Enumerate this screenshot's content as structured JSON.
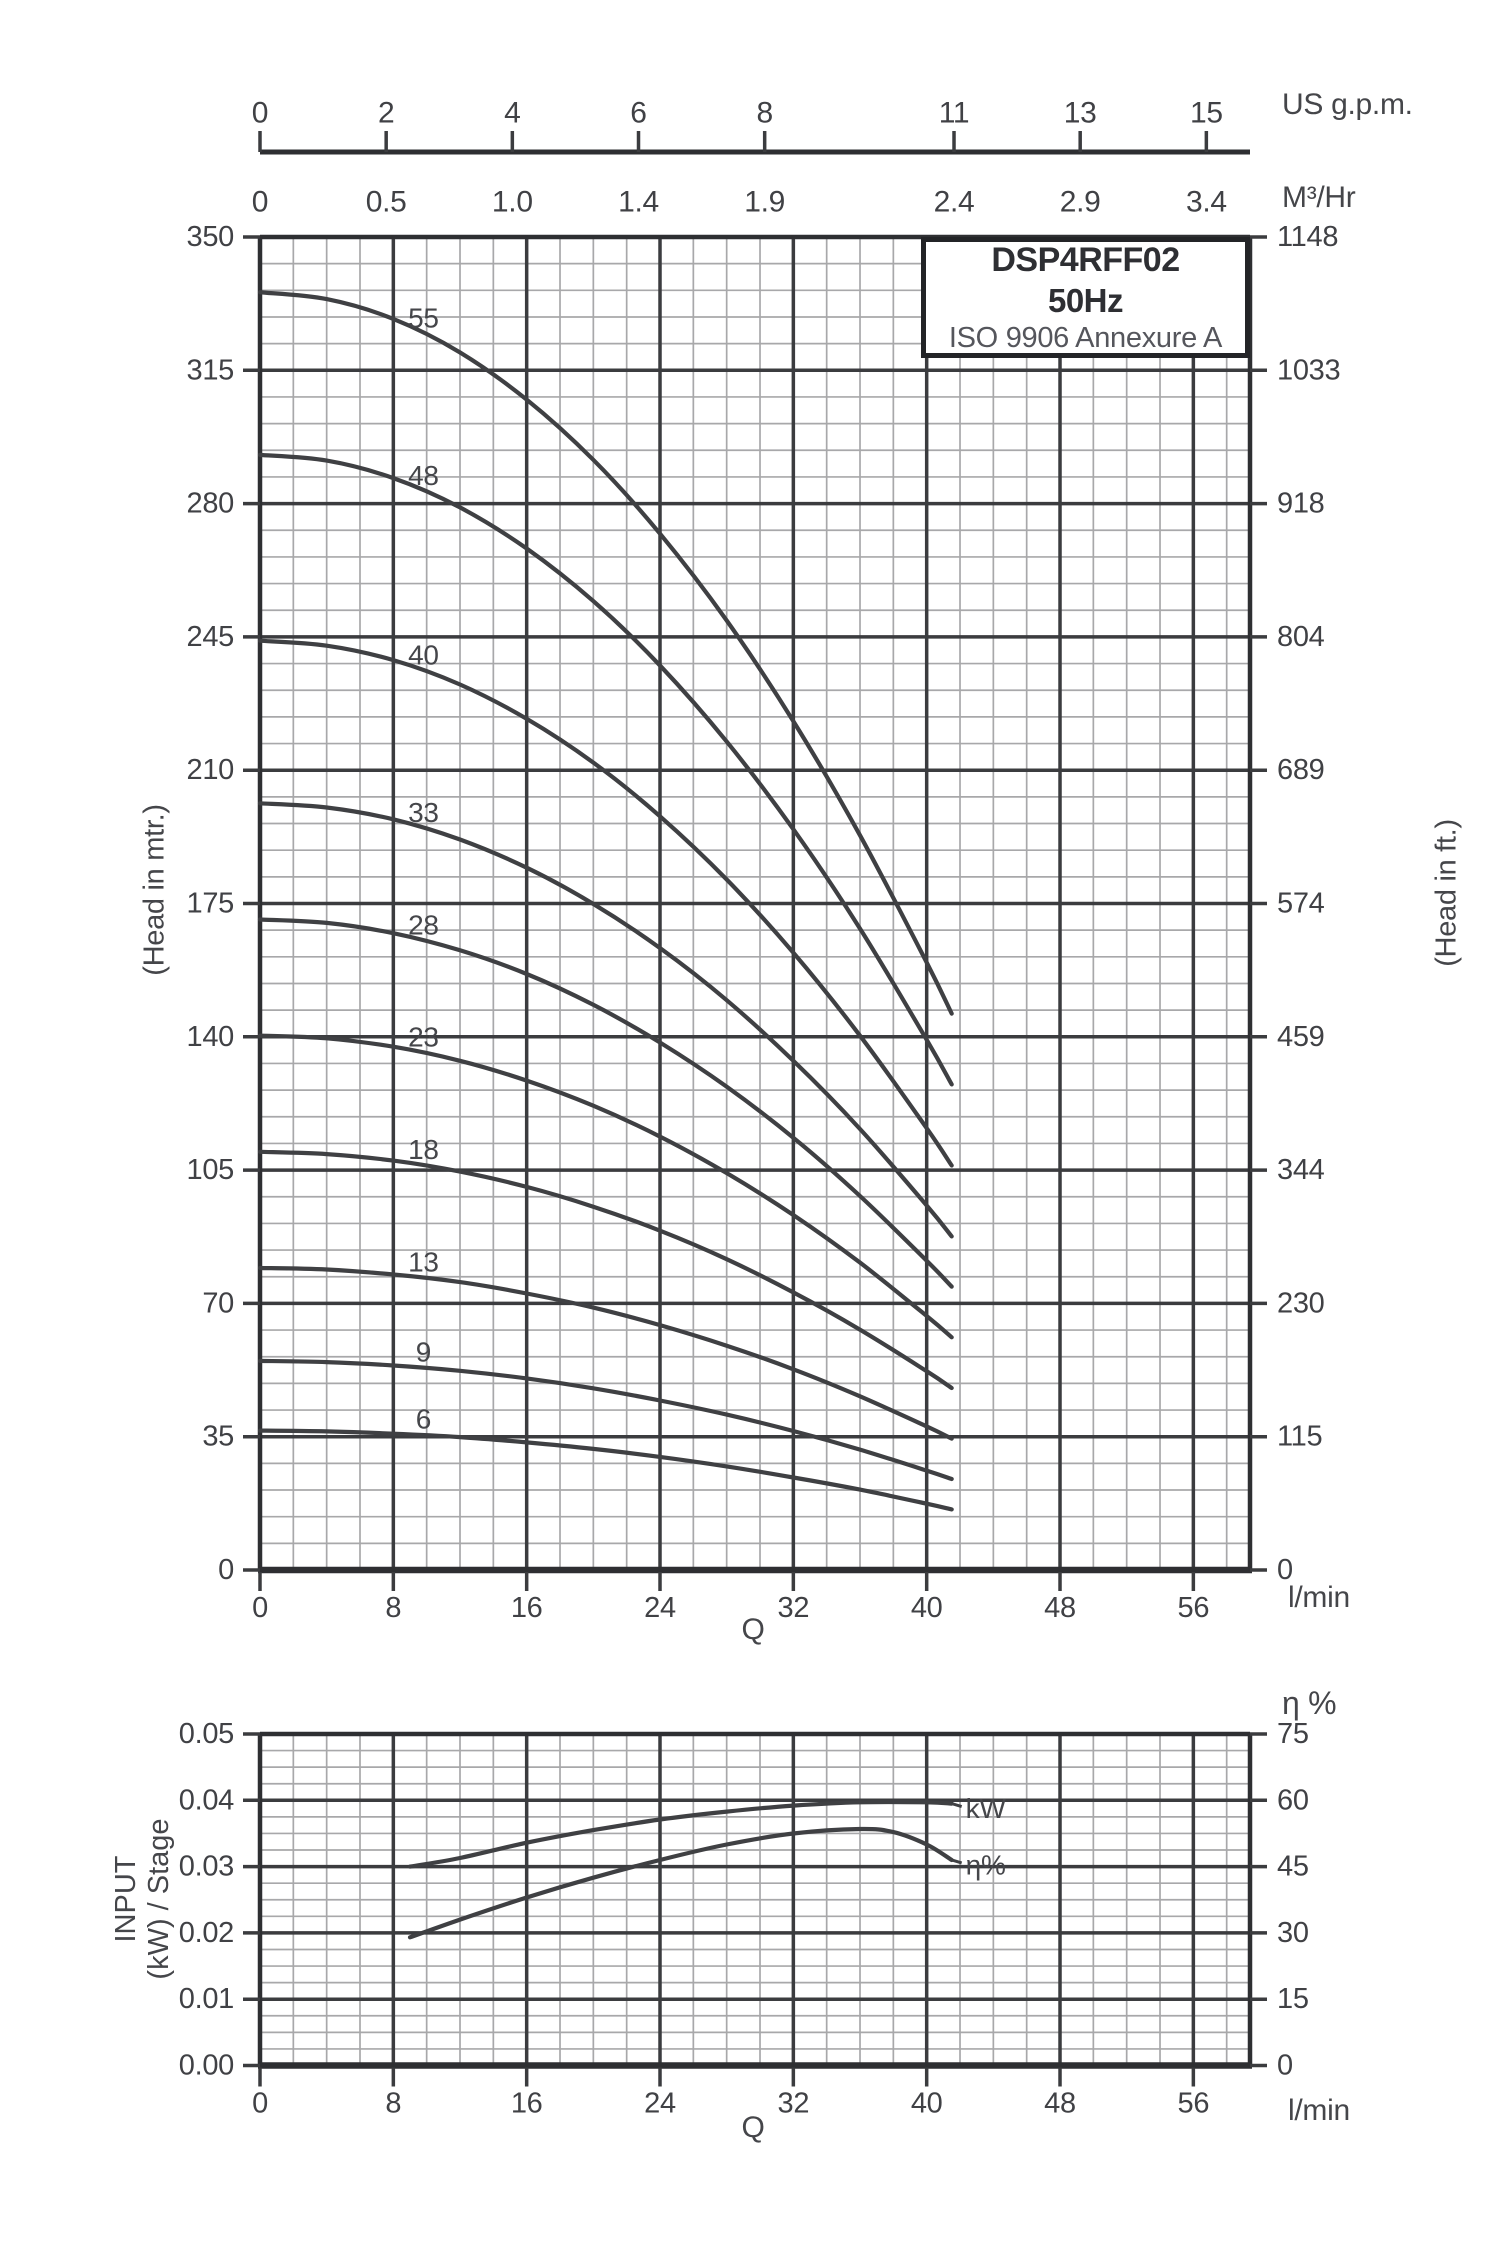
{
  "title_box": {
    "model": "DSP4RFF02",
    "frequency": "50Hz",
    "standard": "ISO 9906 Annexure A"
  },
  "labels": {
    "us_gpm": "US g.p.m.",
    "m3hr": "M³/Hr",
    "lmin": "l/min",
    "q": "Q",
    "eta_pct": "η %",
    "head_mtr": "(Head in mtr.)",
    "head_ft": "(Head in ft.)",
    "input_line1": "INPUT",
    "input_line2": "(kW) / Stage"
  },
  "colors": {
    "curve": "#3f4043",
    "grid_minor": "#a8a8aa",
    "grid_major": "#3b3c3f",
    "border": "#2e2f32",
    "text": "#404145"
  },
  "chart_data": [
    {
      "id": "head-vs-flow",
      "type": "line",
      "title": "DSP4RFF02 50Hz head-capacity curves per stage count",
      "x_bottom": {
        "unit_label": "l/min",
        "axis_title": "Q",
        "min": 0,
        "max": 59.4,
        "major_ticks": [
          0,
          8,
          16,
          24,
          32,
          40,
          48,
          56
        ],
        "minor_step": 2
      },
      "x_top": {
        "gpm_title": "US g.p.m.",
        "m3hr_title": "M³/Hr",
        "ticks": [
          {
            "gpm": "0",
            "m3": "0",
            "lmin": 0
          },
          {
            "gpm": "2",
            "m3": "0.5",
            "lmin": 7.57
          },
          {
            "gpm": "4",
            "m3": "1.0",
            "lmin": 15.14
          },
          {
            "gpm": "6",
            "m3": "1.4",
            "lmin": 22.71
          },
          {
            "gpm": "8",
            "m3": "1.9",
            "lmin": 30.28
          },
          {
            "gpm": "11",
            "m3": "2.4",
            "lmin": 41.64
          },
          {
            "gpm": "13",
            "m3": "2.9",
            "lmin": 49.21
          },
          {
            "gpm": "15",
            "m3": "3.4",
            "lmin": 56.78
          }
        ]
      },
      "y_left": {
        "title": "(Head in mtr.)",
        "min": 0,
        "max": 350,
        "major_step": 35,
        "minor_step": 7,
        "ticks": [
          "350",
          "315",
          "280",
          "245",
          "210",
          "175",
          "140",
          "105",
          "70",
          "35",
          "0"
        ]
      },
      "y_right": {
        "title": "(Head in ft.)",
        "ticks": [
          "1148",
          "1033",
          "918",
          "804",
          "689",
          "574",
          "459",
          "344",
          "230",
          "115",
          "0"
        ]
      },
      "q_samples": [
        0,
        4,
        8,
        12,
        16,
        20,
        24,
        28,
        32,
        36,
        40,
        41.5
      ],
      "series": [
        {
          "stages": "55",
          "heads": [
            335.5,
            333.7,
            328.5,
            319.7,
            307.3,
            291.5,
            272.1,
            249.3,
            222.9,
            192.9,
            159.5,
            146.1
          ]
        },
        {
          "stages": "48",
          "heads": [
            292.8,
            291.3,
            286.7,
            279.0,
            268.2,
            254.4,
            237.5,
            217.5,
            194.5,
            168.4,
            139.2,
            127.5
          ]
        },
        {
          "stages": "40",
          "heads": [
            244.0,
            242.7,
            238.9,
            232.5,
            223.5,
            212.0,
            197.9,
            181.3,
            162.1,
            140.3,
            116.0,
            106.2
          ]
        },
        {
          "stages": "33",
          "heads": [
            201.3,
            200.2,
            197.1,
            191.8,
            184.4,
            174.9,
            163.3,
            149.6,
            133.7,
            115.8,
            95.7,
            87.6
          ]
        },
        {
          "stages": "28",
          "heads": [
            170.8,
            169.9,
            167.2,
            162.7,
            156.5,
            148.4,
            138.5,
            126.9,
            113.5,
            98.2,
            81.2,
            74.4
          ]
        },
        {
          "stages": "23",
          "heads": [
            140.3,
            139.6,
            137.4,
            133.7,
            128.5,
            121.9,
            113.8,
            104.2,
            93.2,
            80.7,
            66.7,
            61.1
          ]
        },
        {
          "stages": "18",
          "heads": [
            109.8,
            109.2,
            107.5,
            104.6,
            100.6,
            95.4,
            89.1,
            81.6,
            72.9,
            63.1,
            52.2,
            47.8
          ]
        },
        {
          "stages": "13",
          "heads": [
            79.3,
            78.9,
            77.6,
            75.6,
            72.6,
            68.9,
            64.3,
            58.9,
            52.7,
            45.6,
            37.7,
            34.5
          ]
        },
        {
          "stages": "9",
          "heads": [
            54.9,
            54.6,
            53.7,
            52.3,
            50.3,
            47.7,
            44.5,
            40.8,
            36.5,
            31.6,
            26.1,
            23.9
          ]
        },
        {
          "stages": "6",
          "heads": [
            36.6,
            36.4,
            35.8,
            34.9,
            33.5,
            31.8,
            29.7,
            27.2,
            24.3,
            21.1,
            17.4,
            15.9
          ]
        }
      ],
      "series_label_q": 9.8
    },
    {
      "id": "input-power-efficiency",
      "type": "line",
      "title": "Input power per stage and efficiency",
      "x_bottom": {
        "unit_label": "l/min",
        "axis_title": "Q",
        "min": 0,
        "max": 59.4,
        "major_ticks": [
          0,
          8,
          16,
          24,
          32,
          40,
          48,
          56
        ],
        "minor_step": 2
      },
      "y_left": {
        "title": "INPUT (kW) / Stage",
        "min": 0,
        "max": 0.05,
        "major_step": 0.01,
        "minor_step": 0.0025,
        "ticks": [
          "0.05",
          "0.04",
          "0.03",
          "0.02",
          "0.01",
          "0.00"
        ]
      },
      "y_right": {
        "title": "η %",
        "min": 0,
        "max": 75,
        "major_step": 15,
        "ticks": [
          "75",
          "60",
          "45",
          "30",
          "15",
          "0"
        ]
      },
      "series": [
        {
          "name": "kW",
          "axis": "left",
          "points": [
            [
              9,
              0.03
            ],
            [
              12,
              0.0313
            ],
            [
              16,
              0.0336
            ],
            [
              20,
              0.0355
            ],
            [
              24,
              0.0371
            ],
            [
              28,
              0.0383
            ],
            [
              32,
              0.0392
            ],
            [
              36,
              0.0397
            ],
            [
              40,
              0.0397
            ],
            [
              41.5,
              0.0395
            ]
          ]
        },
        {
          "name": "η%",
          "axis": "right",
          "points": [
            [
              9,
              29
            ],
            [
              12,
              33
            ],
            [
              16,
              38
            ],
            [
              20,
              42.5
            ],
            [
              24,
              46.5
            ],
            [
              28,
              50
            ],
            [
              32,
              52.5
            ],
            [
              36,
              53.5
            ],
            [
              38,
              52.8
            ],
            [
              40,
              50
            ],
            [
              41.5,
              46.5
            ]
          ]
        }
      ]
    }
  ]
}
